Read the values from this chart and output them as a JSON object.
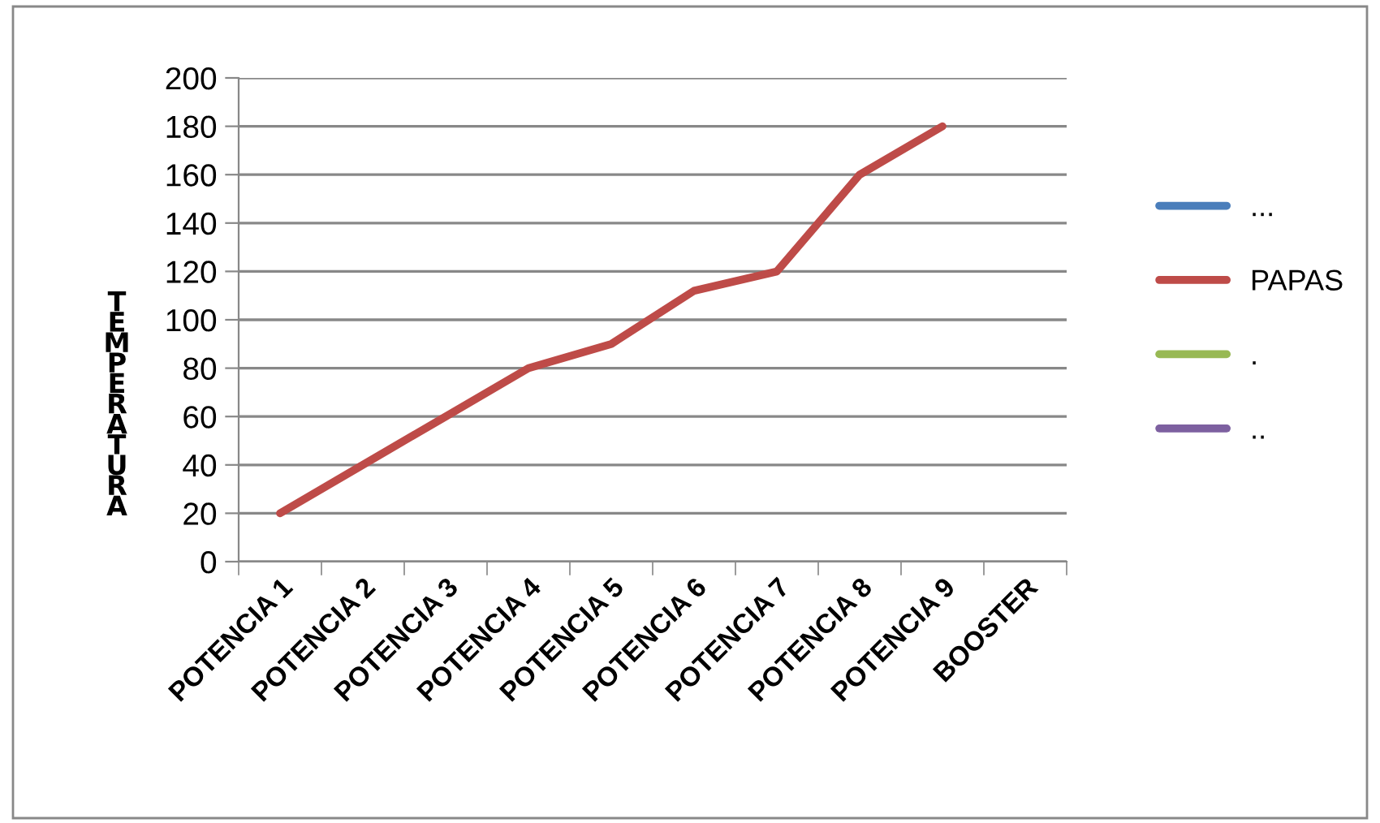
{
  "chart_data": {
    "type": "line",
    "ylabel": "TEMPERATURA",
    "categories": [
      "POTENCIA 1",
      "POTENCIA 2",
      "POTENCIA 3",
      "POTENCIA 4",
      "POTENCIA 5",
      "POTENCIA 6",
      "POTENCIA 7",
      "POTENCIA 8",
      "POTENCIA 9",
      "BOOSTER"
    ],
    "series": [
      {
        "name": "...",
        "color": "#4a7ebb",
        "values": [
          null,
          null,
          null,
          null,
          null,
          null,
          null,
          null,
          null,
          null
        ]
      },
      {
        "name": "PAPAS",
        "color": "#be4b48",
        "values": [
          20,
          40,
          60,
          80,
          90,
          112,
          120,
          160,
          180,
          null
        ]
      },
      {
        "name": ".",
        "color": "#98b954",
        "values": [
          null,
          null,
          null,
          null,
          null,
          null,
          null,
          null,
          null,
          null
        ]
      },
      {
        "name": "..",
        "color": "#7d60a0",
        "values": [
          null,
          null,
          null,
          null,
          null,
          null,
          null,
          null,
          null,
          null
        ]
      }
    ],
    "ylim": [
      0,
      200
    ],
    "yticks": [
      0,
      20,
      40,
      60,
      80,
      100,
      120,
      140,
      160,
      180,
      200
    ],
    "grid": "y",
    "legend": "right",
    "marker": "none",
    "line_style": "solid"
  }
}
